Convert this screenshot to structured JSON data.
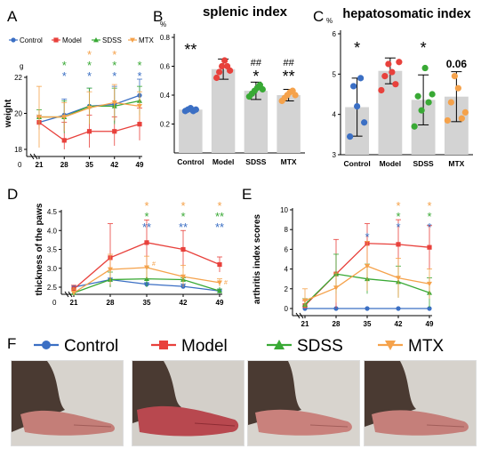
{
  "colors": {
    "Control": "#3b6fc4",
    "Model": "#e8413c",
    "SDSS": "#39a935",
    "MTX": "#f5a24b",
    "bar": "#d3d3d3"
  },
  "legend_F": [
    "Control",
    "Model",
    "SDSS",
    "MTX"
  ],
  "chart_data": [
    {
      "panel": "A",
      "type": "line",
      "title": "",
      "xlabel": "",
      "ylabel": "weight",
      "yunit": "g",
      "x": [
        21,
        28,
        35,
        42,
        49
      ],
      "xlim": [
        21,
        49
      ],
      "ylim": [
        18,
        22
      ],
      "yticks": [
        18,
        20,
        22
      ],
      "axis_break_tick": "0",
      "legend": [
        "Control",
        "Model",
        "SDSS",
        "MTX"
      ],
      "series": [
        {
          "name": "Control",
          "values": [
            19.5,
            19.9,
            20.4,
            20.5,
            21.0
          ],
          "err": [
            0.4,
            0.9,
            1.0,
            1.0,
            0.9
          ]
        },
        {
          "name": "Model",
          "values": [
            19.5,
            18.5,
            19.0,
            19.0,
            19.4
          ],
          "err": [
            0.3,
            1.0,
            0.9,
            0.8,
            0.9
          ]
        },
        {
          "name": "SDSS",
          "values": [
            19.8,
            19.8,
            20.4,
            20.4,
            20.7
          ],
          "err": [
            0.4,
            0.9,
            1.0,
            1.0,
            0.8
          ]
        },
        {
          "name": "MTX",
          "values": [
            19.8,
            19.8,
            20.3,
            20.6,
            20.4
          ],
          "err": [
            1.7,
            0.8,
            0.9,
            1.0,
            0.8
          ]
        }
      ],
      "sig_rows": [
        [
          "*",
          "*",
          "*",
          "*"
        ],
        [
          "*",
          "*",
          "*",
          "*"
        ],
        [
          "*",
          "*",
          "*",
          "*"
        ]
      ],
      "sig_colors": [
        "MTX",
        "SDSS",
        "Control"
      ],
      "sig_x": [
        28,
        35,
        42,
        49
      ],
      "sig_mask": [
        [
          false,
          true,
          true,
          false
        ],
        [
          true,
          true,
          true,
          true
        ],
        [
          true,
          true,
          true,
          true
        ]
      ]
    },
    {
      "panel": "B",
      "type": "bar",
      "title": "splenic index",
      "ylabel": "",
      "yunit": "%",
      "categories": [
        "Control",
        "Model",
        "SDSS",
        "MTX"
      ],
      "ylim": [
        0,
        0.8
      ],
      "yticks": [
        0.2,
        0.4,
        0.6,
        0.8
      ],
      "values": [
        0.3,
        0.58,
        0.43,
        0.4
      ],
      "err": [
        0.01,
        0.07,
        0.06,
        0.04
      ],
      "points": [
        [
          0.29,
          0.3,
          0.31,
          0.29,
          0.3
        ],
        [
          0.52,
          0.56,
          0.6,
          0.64,
          0.6,
          0.57
        ],
        [
          0.39,
          0.41,
          0.43,
          0.45,
          0.47,
          0.44
        ],
        [
          0.36,
          0.38,
          0.4,
          0.42,
          0.43,
          0.4
        ]
      ],
      "annot": [
        [
          "",
          "**"
        ],
        [
          "",
          ""
        ],
        [
          "##",
          "*"
        ],
        [
          "##",
          "**"
        ]
      ]
    },
    {
      "panel": "C",
      "type": "bar",
      "title": "hepatosomatic index",
      "ylabel": "",
      "yunit": "%",
      "categories": [
        "Control",
        "Model",
        "SDSS",
        "MTX"
      ],
      "ylim": [
        3,
        6
      ],
      "yticks": [
        3,
        4,
        5,
        6
      ],
      "values": [
        4.18,
        5.08,
        4.36,
        4.44
      ],
      "err": [
        0.72,
        0.32,
        0.62,
        0.62
      ],
      "points": [
        [
          3.45,
          4.7,
          4.2,
          4.9,
          3.8
        ],
        [
          4.6,
          4.95,
          5.25,
          5.05,
          4.75,
          5.3
        ],
        [
          3.7,
          4.45,
          4.1,
          5.15,
          4.3,
          4.5
        ],
        [
          3.85,
          4.3,
          4.95,
          4.65,
          3.9,
          4.05
        ]
      ],
      "annot": [
        "*",
        "",
        "*",
        "0.06"
      ]
    },
    {
      "panel": "D",
      "type": "line",
      "title": "",
      "xlabel": "",
      "ylabel": "thickness of the paws",
      "x": [
        21,
        28,
        35,
        42,
        49
      ],
      "ylim": [
        2.5,
        4.5
      ],
      "yticks": [
        2.5,
        3.0,
        3.5,
        4.0,
        4.5
      ],
      "axis_break_tick": "0",
      "series": [
        {
          "name": "Control",
          "values": [
            2.5,
            2.7,
            2.58,
            2.52,
            2.4
          ],
          "err": [
            0.05,
            0.04,
            0.04,
            0.06,
            0.05
          ]
        },
        {
          "name": "Model",
          "values": [
            2.45,
            3.28,
            3.68,
            3.5,
            3.1
          ],
          "err": [
            0.1,
            0.9,
            0.6,
            0.5,
            0.2
          ]
        },
        {
          "name": "SDSS",
          "values": [
            2.35,
            2.7,
            2.72,
            2.7,
            2.4
          ],
          "err": [
            0.1,
            0.2,
            0.3,
            0.05,
            0.05
          ]
        },
        {
          "name": "MTX",
          "values": [
            2.35,
            2.97,
            3.02,
            2.78,
            2.62
          ],
          "err": [
            0.1,
            0.4,
            0.3,
            0.3,
            0.1
          ]
        }
      ],
      "sig": [
        {
          "x": 35,
          "rows": [
            [
              "*",
              "MTX"
            ],
            [
              "*",
              "SDSS"
            ],
            [
              "**",
              "Control"
            ]
          ]
        },
        {
          "x": 42,
          "rows": [
            [
              "*",
              "MTX"
            ],
            [
              "*",
              "SDSS"
            ],
            [
              "**",
              "Control"
            ]
          ]
        },
        {
          "x": 49,
          "rows": [
            [
              "*",
              "MTX"
            ],
            [
              "**",
              "SDSS"
            ],
            [
              "**",
              "Control"
            ]
          ]
        }
      ]
    },
    {
      "panel": "E",
      "type": "line",
      "title": "",
      "xlabel": "",
      "ylabel": "arthritis index scores",
      "x": [
        21,
        28,
        35,
        42,
        49
      ],
      "ylim": [
        0,
        10
      ],
      "yticks": [
        0,
        2,
        4,
        6,
        8,
        10
      ],
      "series": [
        {
          "name": "Control",
          "values": [
            0,
            0,
            0,
            0,
            0
          ],
          "err": [
            0,
            0,
            0,
            0,
            0
          ]
        },
        {
          "name": "Model",
          "values": [
            0.3,
            3.5,
            6.6,
            6.5,
            6.2
          ],
          "err": [
            0.5,
            3.5,
            2.0,
            2.5,
            2.2
          ]
        },
        {
          "name": "SDSS",
          "values": [
            0.4,
            3.5,
            3.0,
            2.7,
            1.6
          ],
          "err": [
            0.6,
            2.0,
            1.5,
            1.6,
            1.5
          ]
        },
        {
          "name": "MTX",
          "values": [
            0.8,
            2.1,
            4.3,
            3.1,
            2.5
          ],
          "err": [
            1.2,
            1.5,
            2.5,
            2.0,
            1.5
          ]
        }
      ],
      "sig": [
        {
          "x": 35,
          "rows": [
            [
              "*",
              "Control"
            ]
          ]
        },
        {
          "x": 42,
          "rows": [
            [
              "*",
              "MTX"
            ],
            [
              "*",
              "SDSS"
            ],
            [
              "*",
              "Control"
            ]
          ]
        },
        {
          "x": 49,
          "rows": [
            [
              "*",
              "MTX"
            ],
            [
              "*",
              "SDSS"
            ],
            [
              "*",
              "Control"
            ]
          ]
        }
      ]
    }
  ],
  "labels": {
    "panel_A": "A",
    "panel_B": "B",
    "panel_C": "C",
    "panel_D": "D",
    "panel_E": "E",
    "panel_F": "F",
    "legend_A_control": "Control",
    "legend_A_model": "Model",
    "legend_A_sdss": "SDSS",
    "legend_A_mtx": "MTX",
    "paw_photos": [
      "Control",
      "Model",
      "SDSS",
      "MTX"
    ]
  }
}
